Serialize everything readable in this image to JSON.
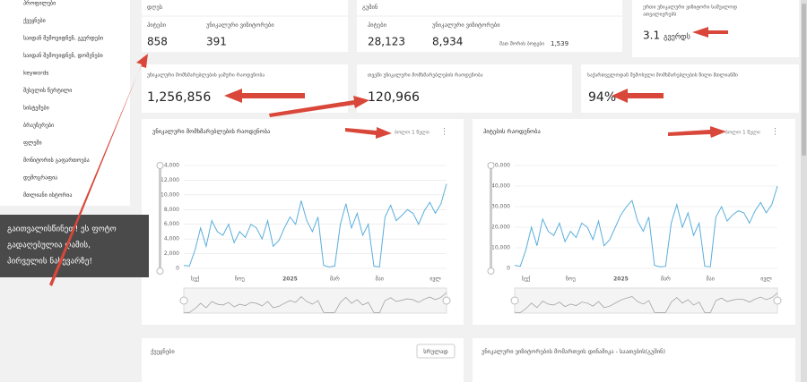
{
  "sidebar": {
    "items": [
      "პროფილები",
      "ქვეყნები",
      "საიდან შემოვიდნენ, გვერდები",
      "საიდან შემოვიდნენ, დომენები",
      "keywords",
      "შესვლის წერტილი",
      "სისტემები",
      "ბრაუზერები",
      "ფლეში",
      "მონიტორის გაფართოება",
      "დემოგრაფია",
      "მთლიანი ისტორია"
    ]
  },
  "notice": {
    "lines": [
      "გაითვალისწინეთ! ეს ფოტო",
      "გადაღებულია ღამის,",
      "პირველის ნახევარზე!"
    ]
  },
  "cards": {
    "today": {
      "title": "დღეს",
      "hits_label": "ჰიტები",
      "hits": "858",
      "visitors_label": "უნიკალური ვიზიტორები",
      "visitors": "391"
    },
    "yesterday": {
      "title": "გუშინ",
      "hits_label": "ჰიტები",
      "hits": "28,123",
      "visitors_label": "უნიკალური ვიზიტორები",
      "visitors": "8,934",
      "bots_label": "მათ შორის ბოტები",
      "bots": "1,539"
    },
    "avg": {
      "title_lines": [
        "ერთი უნიკალური ვიზიტორი საშუალოდ",
        "ათვალიერებს"
      ],
      "value": "3.1",
      "unit": "გვერდს"
    },
    "total": {
      "label": "უნიკალური მომხმარებლების ჯამური რაოდენობა",
      "value": "1,256,856"
    },
    "monthly": {
      "label": "თვეში უნიკალური მომხმარებლების რაოდენობა",
      "value": "120,966"
    },
    "georgia": {
      "label": "საქართველოდან შემოსული მომხმარებლების წილი მთლიანში",
      "value": "94%"
    }
  },
  "chart_data": [
    {
      "type": "line",
      "title": "უნიკალური მომხმარებლების რაოდენობა",
      "period": "ბოლო 1 წელი",
      "color": "#5aaedc",
      "categories": [
        null,
        null,
        "სექ",
        null,
        null,
        null,
        null,
        null,
        null,
        null,
        "ნოე",
        null,
        null,
        null,
        null,
        null,
        null,
        null,
        null,
        "2025",
        null,
        null,
        null,
        null,
        null,
        null,
        null,
        "მარ",
        null,
        null,
        null,
        null,
        null,
        null,
        null,
        "მაი",
        null,
        null,
        null,
        null,
        null,
        null,
        null,
        null,
        null,
        "ივლ",
        null,
        null
      ],
      "values": [
        400,
        300,
        2500,
        5500,
        3000,
        6500,
        5000,
        4500,
        6000,
        3500,
        5000,
        4200,
        6000,
        5500,
        4000,
        6500,
        3000,
        3800,
        5500,
        7000,
        6000,
        9200,
        6500,
        5000,
        7000,
        400,
        200,
        300,
        6000,
        8800,
        5500,
        7500,
        4500,
        6000,
        300,
        200,
        7000,
        8600,
        6500,
        7200,
        8000,
        7500,
        6000,
        7800,
        9000,
        7500,
        8800,
        11500
      ],
      "ylim": [
        0,
        14000
      ],
      "yticks": [
        0,
        {
          "value": 2000,
          "label": "2,000"
        },
        {
          "value": 4000,
          "label": "4,000"
        },
        {
          "value": 6000,
          "label": "6,000"
        },
        {
          "value": 8000,
          "label": "8,000"
        },
        {
          "value": 10000,
          "label": "10,000"
        },
        {
          "value": 12000,
          "label": "12,000"
        },
        {
          "value": 14000,
          "label": "14,000"
        }
      ],
      "grid": true
    },
    {
      "type": "line",
      "title": "ჰიტების რაოდენობა",
      "period": "ბოლო 1 წელი",
      "color": "#5aaedc",
      "categories": [
        null,
        null,
        "სექ",
        null,
        null,
        null,
        null,
        null,
        null,
        null,
        "ნოე",
        null,
        null,
        null,
        null,
        null,
        null,
        null,
        null,
        "2025",
        null,
        null,
        null,
        null,
        null,
        null,
        null,
        "მარ",
        null,
        null,
        null,
        null,
        null,
        null,
        null,
        "მაი",
        null,
        null,
        null,
        null,
        null,
        null,
        null,
        null,
        null,
        "ივლ",
        null,
        null
      ],
      "values": [
        1500,
        1000,
        9000,
        20000,
        11000,
        24000,
        18000,
        16000,
        22000,
        13000,
        18000,
        15000,
        22000,
        20000,
        14000,
        23000,
        11000,
        14000,
        20000,
        26000,
        30000,
        33000,
        23000,
        18000,
        25000,
        1500,
        800,
        1000,
        22000,
        31000,
        20000,
        27000,
        16000,
        22000,
        1000,
        800,
        25000,
        30000,
        23000,
        26000,
        28000,
        27000,
        22000,
        28000,
        32000,
        27000,
        31000,
        40000
      ],
      "ylim": [
        0,
        50000
      ],
      "yticks": [
        0,
        {
          "value": 10000,
          "label": "10,000"
        },
        {
          "value": 20000,
          "label": "20,000"
        },
        {
          "value": 30000,
          "label": "30,000"
        },
        {
          "value": 40000,
          "label": "40,000"
        },
        {
          "value": 50000,
          "label": "50,000"
        }
      ],
      "grid": true
    }
  ],
  "bottom": {
    "countries": {
      "title": "ქვეყნები",
      "button": "სრულად"
    },
    "dynamics": {
      "title": "უნიკალური ვიზიტორების მომართვის დინამიკა - საათების(გუშინ)"
    }
  }
}
